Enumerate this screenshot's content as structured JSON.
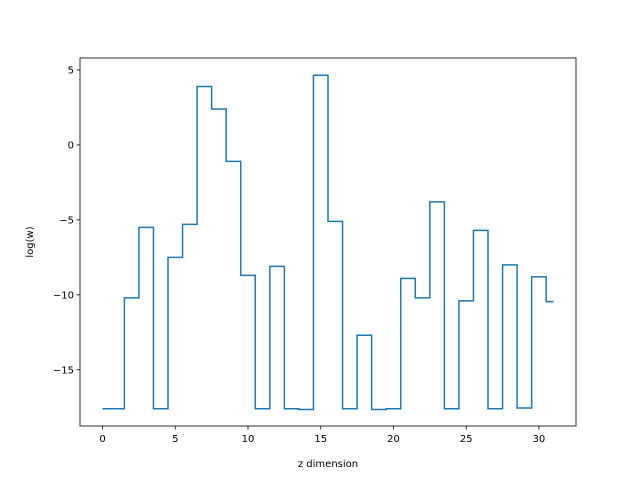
{
  "chart_data": {
    "type": "line",
    "drawstyle": "steps-mid",
    "title": "",
    "xlabel": "z dimension",
    "ylabel": "log(w)",
    "xlim": [
      -1.55,
      32.55
    ],
    "ylim": [
      -18.75,
      5.8
    ],
    "xticks": [
      0,
      5,
      10,
      15,
      20,
      25,
      30
    ],
    "xtick_labels": [
      "0",
      "5",
      "10",
      "15",
      "20",
      "25",
      "30"
    ],
    "yticks": [
      -15,
      -10,
      -5,
      0,
      5
    ],
    "ytick_labels": [
      "−15",
      "−10",
      "−5",
      "0",
      "5"
    ],
    "grid": false,
    "line_color": "#1f77b4",
    "series": [
      {
        "x": [
          0,
          1,
          2,
          3,
          4,
          5,
          6,
          7,
          8,
          9,
          10,
          11,
          12,
          13,
          14,
          15,
          16,
          17,
          18,
          19,
          20,
          21,
          22,
          23,
          24,
          25,
          26,
          27,
          28,
          29,
          30,
          31
        ],
        "values": [
          -17.6,
          -17.6,
          -10.2,
          -5.5,
          -17.6,
          -7.5,
          -5.3,
          3.9,
          2.4,
          -1.1,
          -8.7,
          -17.6,
          -8.1,
          -17.6,
          -17.65,
          4.65,
          -5.1,
          -17.6,
          -12.7,
          -17.65,
          -17.6,
          -8.9,
          -10.2,
          -3.8,
          -17.6,
          -10.4,
          -5.7,
          -17.6,
          -8.0,
          -17.55,
          -8.8,
          -10.45
        ]
      }
    ]
  }
}
